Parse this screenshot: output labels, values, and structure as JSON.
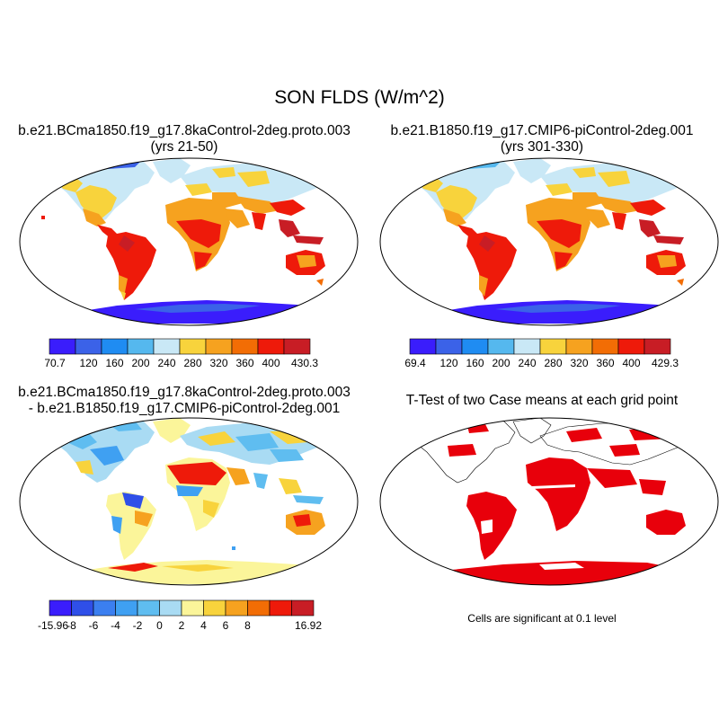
{
  "figure_title": "SON FLDS (W/m^2)",
  "panels": [
    {
      "title_line1": "b.e21.BCma1850.f19_g17.8kaControl-2deg.proto.003",
      "title_line2": "(yrs 21-50)",
      "colorbar": {
        "colors": [
          "#3a1dfc",
          "#3b62e8",
          "#1f8cf2",
          "#55b8ee",
          "#c9e8f6",
          "#f8d33c",
          "#f6a21f",
          "#f26d05",
          "#ee1a0a",
          "#c81d25"
        ],
        "tick_labels": [
          "70.7",
          "120",
          "160",
          "200",
          "240",
          "280",
          "320",
          "360",
          "400",
          "430.3"
        ]
      }
    },
    {
      "title_line1": "b.e21.B1850.f19_g17.CMIP6-piControl-2deg.001",
      "title_line2": "(yrs 301-330)",
      "colorbar": {
        "colors": [
          "#3a1dfc",
          "#3b62e8",
          "#1f8cf2",
          "#55b8ee",
          "#c9e8f6",
          "#f8d33c",
          "#f6a21f",
          "#f26d05",
          "#ee1a0a",
          "#c81d25"
        ],
        "tick_labels": [
          "69.4",
          "120",
          "160",
          "200",
          "240",
          "280",
          "320",
          "360",
          "400",
          "429.3"
        ]
      }
    },
    {
      "title_line1": "b.e21.BCma1850.f19_g17.8kaControl-2deg.proto.003",
      "title_line2": "- b.e21.B1850.f19_g17.CMIP6-piControl-2deg.001",
      "colorbar": {
        "colors": [
          "#3a1dfc",
          "#2f4fe8",
          "#3b7ff0",
          "#3fa0f2",
          "#5fbdf0",
          "#a9dbf3",
          "#fbf59a",
          "#f8d33c",
          "#f6a21f",
          "#f26d05",
          "#ee1a0a",
          "#c81d25"
        ],
        "tick_labels": [
          "-15.96",
          "-8",
          "-6",
          "-4",
          "-2",
          "0",
          "2",
          "4",
          "6",
          "8",
          "16.92"
        ]
      }
    },
    {
      "title_line1": "T-Test of two Case means at each grid point",
      "note": "Cells are significant at 0.1 level",
      "significance_color": "#e8000b"
    }
  ]
}
